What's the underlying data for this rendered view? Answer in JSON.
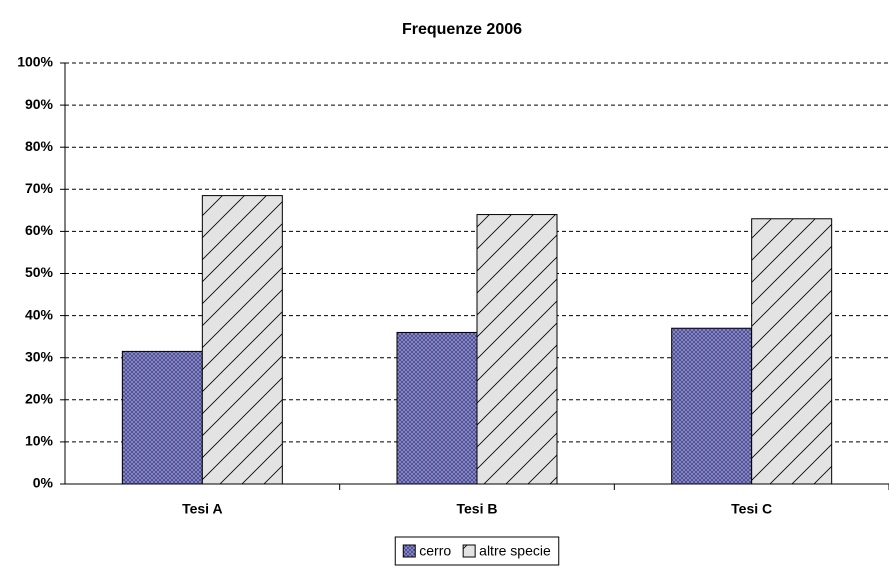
{
  "chart_data": {
    "type": "bar",
    "title": "Frequenze 2006",
    "categories": [
      "Tesi A",
      "Tesi B",
      "Tesi C"
    ],
    "series": [
      {
        "name": "cerro",
        "color": "#8a8ad0",
        "values": [
          31.5,
          36,
          37
        ]
      },
      {
        "name": "altre specie",
        "color": "#e3e3e3",
        "values": [
          68.5,
          64,
          63
        ]
      }
    ],
    "ylim": [
      0,
      100
    ],
    "yticks": [
      {
        "value": 0,
        "label": "0%"
      },
      {
        "value": 10,
        "label": "10%"
      },
      {
        "value": 20,
        "label": "20%"
      },
      {
        "value": 30,
        "label": "30%"
      },
      {
        "value": 40,
        "label": "40%"
      },
      {
        "value": 50,
        "label": "50%"
      },
      {
        "value": 60,
        "label": "60%"
      },
      {
        "value": 70,
        "label": "70%"
      },
      {
        "value": 80,
        "label": "80%"
      },
      {
        "value": 90,
        "label": "90%"
      },
      {
        "value": 100,
        "label": "100%"
      }
    ],
    "grid": true
  }
}
